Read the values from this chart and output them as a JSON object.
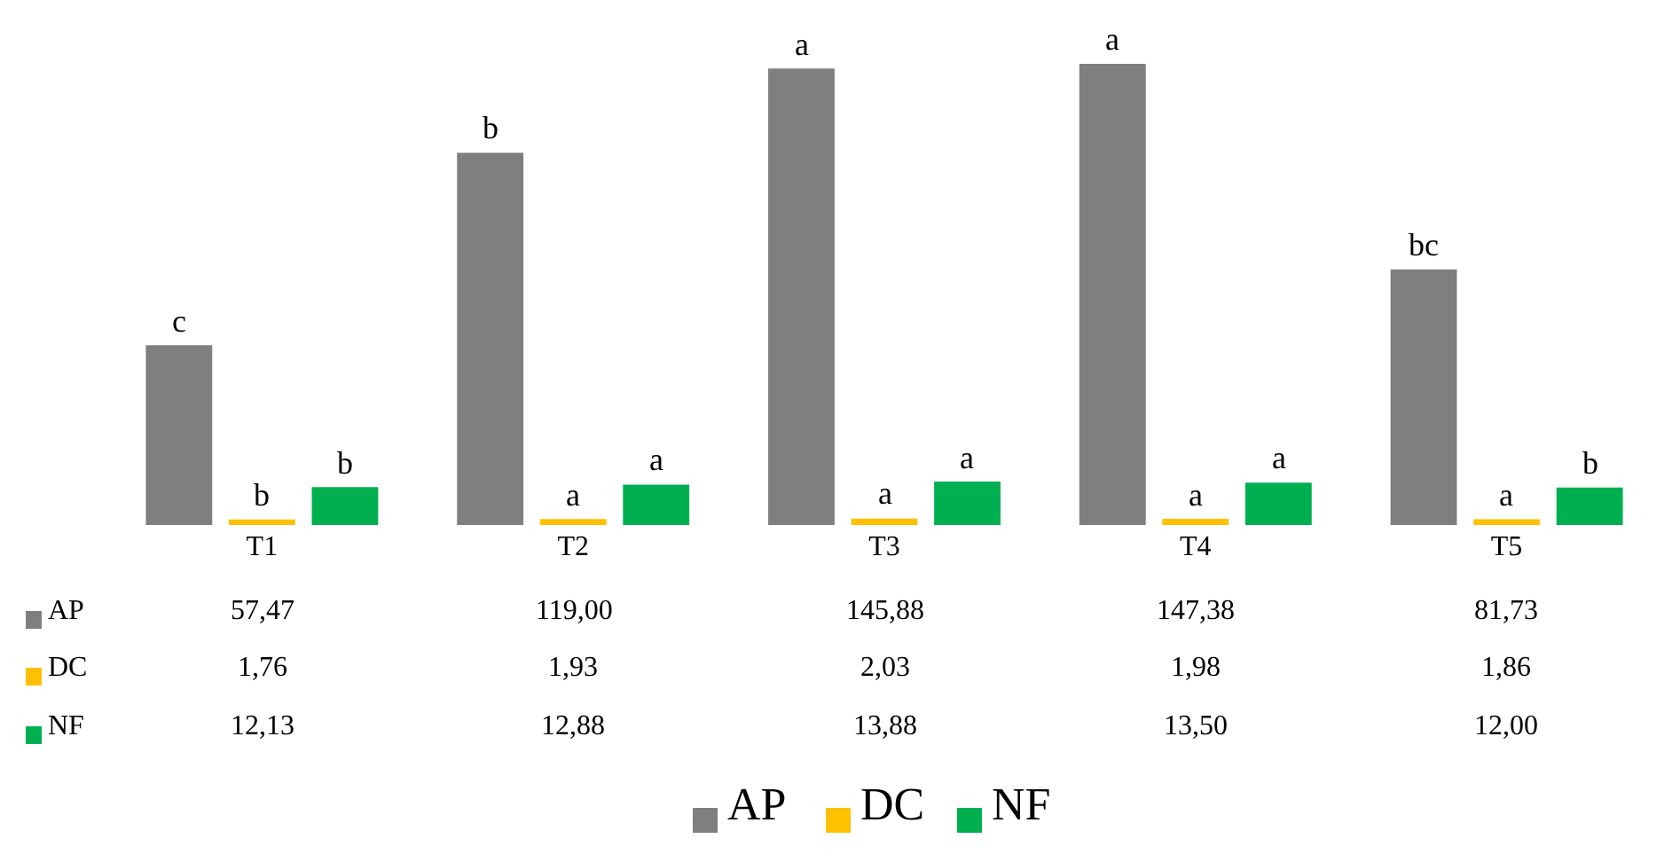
{
  "chart_data": {
    "type": "bar",
    "categories": [
      "T1",
      "T2",
      "T3",
      "T4",
      "T5"
    ],
    "series": [
      {
        "name": "AP",
        "color": "#7f7f7f",
        "values": [
          57.47,
          119.0,
          145.88,
          147.38,
          81.73
        ],
        "value_labels": [
          "57,47",
          "119,00",
          "145,88",
          "147,38",
          "81,73"
        ]
      },
      {
        "name": "DC",
        "color": "#ffc000",
        "values": [
          1.76,
          1.93,
          2.03,
          1.98,
          1.86
        ],
        "value_labels": [
          "1,76",
          "1,93",
          "2,03",
          "1,98",
          "1,86"
        ]
      },
      {
        "name": "NF",
        "color": "#00b050",
        "values": [
          12.13,
          12.88,
          13.88,
          13.5,
          12.0
        ],
        "value_labels": [
          "12,13",
          "12,88",
          "13,88",
          "13,50",
          "12,00"
        ]
      }
    ],
    "annotations": [
      "c",
      "b",
      "b",
      "b",
      "a",
      "a",
      "a",
      "a",
      "a",
      "a",
      "a",
      "a",
      "bc",
      "a",
      "b"
    ],
    "legend": "bottom"
  }
}
